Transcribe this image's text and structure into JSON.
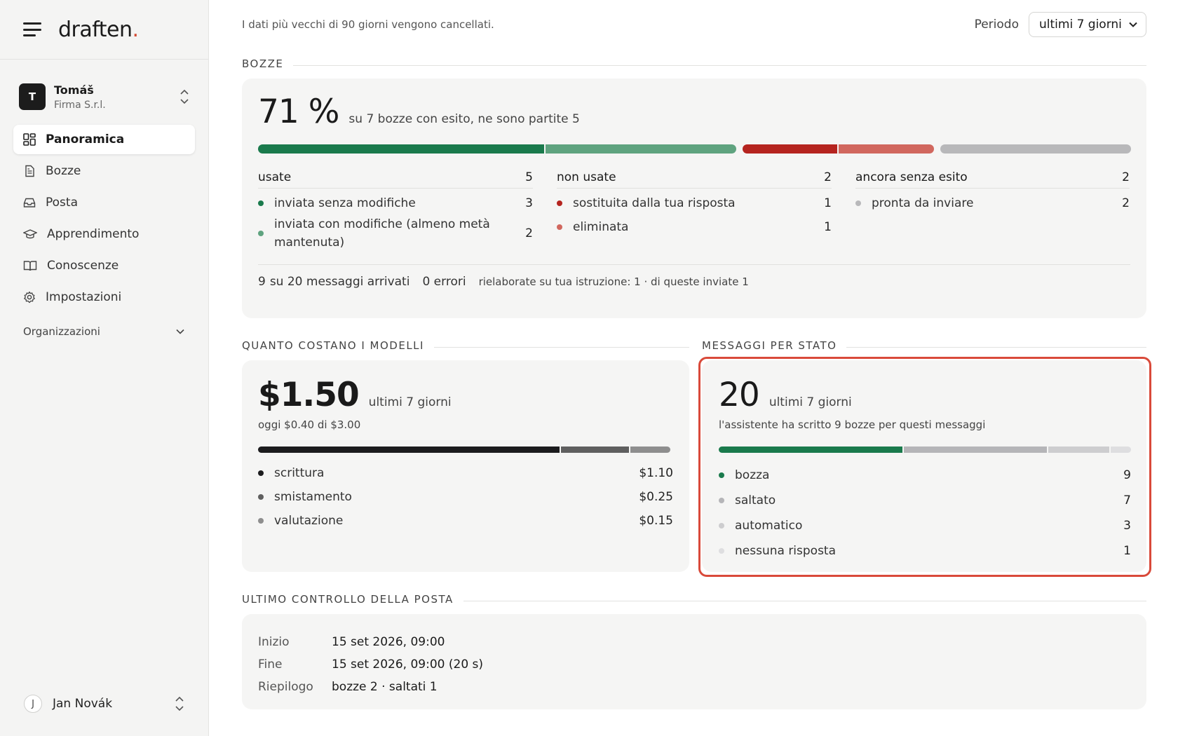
{
  "sidebar": {
    "logo_text": "draften",
    "logo_dot": ".",
    "account": {
      "initial": "T",
      "name": "Tomáš",
      "org": "Firma S.r.l."
    },
    "nav": [
      {
        "label": "Panoramica",
        "icon": "dashboard-icon",
        "active": true
      },
      {
        "label": "Bozze",
        "icon": "document-icon"
      },
      {
        "label": "Posta",
        "icon": "inbox-icon"
      },
      {
        "label": "Apprendimento",
        "icon": "graduation-cap-icon"
      },
      {
        "label": "Conoscenze",
        "icon": "book-icon"
      },
      {
        "label": "Impostazioni",
        "icon": "gear-icon"
      }
    ],
    "orgs_label": "Organizzazioni",
    "user": {
      "initial": "J",
      "name": "Jan Novák"
    }
  },
  "topbar": {
    "note": "I dati più vecchi di 90 giorni vengono cancellati.",
    "period_label": "Periodo",
    "period_value": "ultimi 7 giorni"
  },
  "bozze": {
    "section_title": "BOZZE",
    "big": "71 %",
    "sub": "su 7 bozze con esito, ne sono partite 5",
    "used": {
      "title": "usate",
      "count": "5",
      "rows": [
        {
          "label": "inviata senza modifiche",
          "value": "3",
          "color": "#1a7a4c"
        },
        {
          "label": "inviata con modifiche (almeno metà mantenuta)",
          "value": "2",
          "color": "#5fa37f"
        }
      ]
    },
    "unused": {
      "title": "non usate",
      "count": "2",
      "rows": [
        {
          "label": "sostituita dalla tua risposta",
          "value": "1",
          "color": "#b5241f"
        },
        {
          "label": "eliminata",
          "value": "1",
          "color": "#d1675e"
        }
      ]
    },
    "pending": {
      "title": "ancora senza esito",
      "count": "2",
      "rows": [
        {
          "label": "pronta da inviare",
          "value": "2",
          "color": "#b8b8ba"
        }
      ]
    },
    "footer": {
      "arrived_count": "9",
      "arrived_text": "su 20 messaggi arrivati",
      "errors": "0 errori",
      "reworked": "rielaborate su tua istruzione: 1 · di queste inviate 1"
    }
  },
  "costs": {
    "section_title": "QUANTO COSTANO I MODELLI",
    "big": "$1.50",
    "sub": "ultimi 7 giorni",
    "today": "oggi $0.40 di $3.00",
    "items": [
      {
        "label": "scrittura",
        "value": "$1.10",
        "color": "#1c1c1e",
        "amount": 1.1
      },
      {
        "label": "smistamento",
        "value": "$0.25",
        "color": "#5f5f5f",
        "amount": 0.25
      },
      {
        "label": "valutazione",
        "value": "$0.15",
        "color": "#8e8e8e",
        "amount": 0.15
      }
    ]
  },
  "messages": {
    "section_title": "MESSAGGI PER STATO",
    "big": "20",
    "sub": "ultimi 7 giorni",
    "desc": "l'assistente ha scritto 9 bozze per questi messaggi",
    "items": [
      {
        "label": "bozza",
        "value": "9",
        "color": "#1a7a4c"
      },
      {
        "label": "saltato",
        "value": "7",
        "color": "#b5b5b8"
      },
      {
        "label": "automatico",
        "value": "3",
        "color": "#cdcdcf"
      },
      {
        "label": "nessuna risposta",
        "value": "1",
        "color": "#dedee0"
      }
    ]
  },
  "last_check": {
    "section_title": "ULTIMO CONTROLLO DELLA POSTA",
    "rows": [
      {
        "key": "Inizio",
        "value": "15 set 2026, 09:00"
      },
      {
        "key": "Fine",
        "value": "15 set 2026, 09:00 (20 s)"
      },
      {
        "key": "Riepilogo",
        "value": "bozze 2 · saltati 1"
      }
    ]
  },
  "colors": {
    "accent": "#d44a33",
    "highlight": "#d94a3a"
  }
}
